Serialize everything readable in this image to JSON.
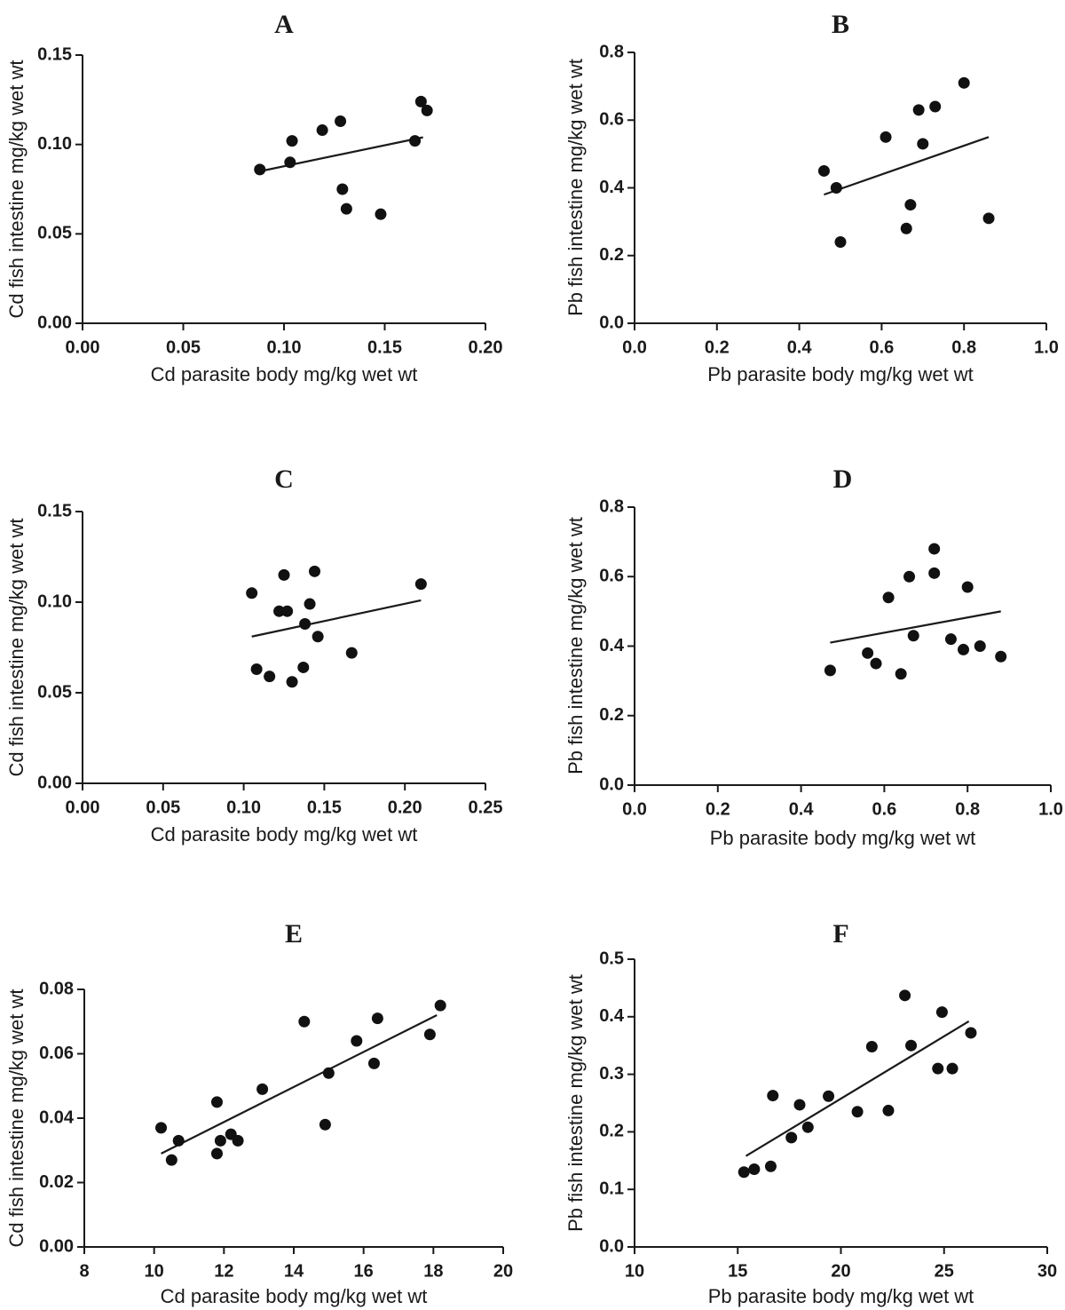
{
  "chart_data": [
    {
      "type": "scatter",
      "panel_label": "A",
      "xlabel": "Cd parasite body mg/kg wet wt",
      "ylabel": "Cd fish intestine mg/kg wet wt",
      "xlim": [
        0,
        0.2
      ],
      "ylim": [
        0,
        0.15
      ],
      "x_ticks": [
        0,
        0.05,
        0.1,
        0.15,
        0.2
      ],
      "x_tick_labels": [
        "0.00",
        "0.05",
        "0.10",
        "0.15",
        "0.20"
      ],
      "y_ticks": [
        0,
        0.05,
        0.1,
        0.15
      ],
      "y_tick_labels": [
        "0.00",
        "0.05",
        "0.10",
        "0.15"
      ],
      "points": [
        {
          "x": 0.088,
          "y": 0.086
        },
        {
          "x": 0.103,
          "y": 0.09
        },
        {
          "x": 0.104,
          "y": 0.102
        },
        {
          "x": 0.119,
          "y": 0.108
        },
        {
          "x": 0.128,
          "y": 0.113
        },
        {
          "x": 0.129,
          "y": 0.075
        },
        {
          "x": 0.131,
          "y": 0.064
        },
        {
          "x": 0.148,
          "y": 0.061
        },
        {
          "x": 0.165,
          "y": 0.102
        },
        {
          "x": 0.168,
          "y": 0.124
        },
        {
          "x": 0.171,
          "y": 0.119
        }
      ],
      "fit_line": {
        "x": [
          0.088,
          0.169
        ],
        "y": [
          0.085,
          0.104
        ]
      }
    },
    {
      "type": "scatter",
      "panel_label": "B",
      "xlabel": "Pb parasite body mg/kg wet wt",
      "ylabel": "Pb fish intestine mg/kg wet wt",
      "xlim": [
        0,
        1.0
      ],
      "ylim": [
        0,
        0.8
      ],
      "x_ticks": [
        0,
        0.2,
        0.4,
        0.6,
        0.8,
        1.0
      ],
      "x_tick_labels": [
        "0.0",
        "0.2",
        "0.4",
        "0.6",
        "0.8",
        "1.0"
      ],
      "y_ticks": [
        0,
        0.2,
        0.4,
        0.6,
        0.8
      ],
      "y_tick_labels": [
        "0.0",
        "0.2",
        "0.4",
        "0.6",
        "0.8"
      ],
      "points": [
        {
          "x": 0.46,
          "y": 0.45
        },
        {
          "x": 0.49,
          "y": 0.4
        },
        {
          "x": 0.5,
          "y": 0.24
        },
        {
          "x": 0.61,
          "y": 0.55
        },
        {
          "x": 0.66,
          "y": 0.28
        },
        {
          "x": 0.67,
          "y": 0.35
        },
        {
          "x": 0.69,
          "y": 0.63
        },
        {
          "x": 0.7,
          "y": 0.53
        },
        {
          "x": 0.73,
          "y": 0.64
        },
        {
          "x": 0.8,
          "y": 0.71
        },
        {
          "x": 0.86,
          "y": 0.31
        }
      ],
      "fit_line": {
        "x": [
          0.46,
          0.86
        ],
        "y": [
          0.38,
          0.55
        ]
      }
    },
    {
      "type": "scatter",
      "panel_label": "C",
      "xlabel": "Cd parasite body mg/kg wet wt",
      "ylabel": "Cd fish intestine mg/kg wet wt",
      "xlim": [
        0,
        0.25
      ],
      "ylim": [
        0,
        0.15
      ],
      "x_ticks": [
        0,
        0.05,
        0.1,
        0.15,
        0.2,
        0.25
      ],
      "x_tick_labels": [
        "0.00",
        "0.05",
        "0.10",
        "0.15",
        "0.20",
        "0.25"
      ],
      "y_ticks": [
        0,
        0.05,
        0.1,
        0.15
      ],
      "y_tick_labels": [
        "0.00",
        "0.05",
        "0.10",
        "0.15"
      ],
      "points": [
        {
          "x": 0.105,
          "y": 0.105
        },
        {
          "x": 0.108,
          "y": 0.063
        },
        {
          "x": 0.116,
          "y": 0.059
        },
        {
          "x": 0.122,
          "y": 0.095
        },
        {
          "x": 0.125,
          "y": 0.115
        },
        {
          "x": 0.127,
          "y": 0.095
        },
        {
          "x": 0.13,
          "y": 0.056
        },
        {
          "x": 0.137,
          "y": 0.064
        },
        {
          "x": 0.138,
          "y": 0.088
        },
        {
          "x": 0.141,
          "y": 0.099
        },
        {
          "x": 0.144,
          "y": 0.117
        },
        {
          "x": 0.146,
          "y": 0.081
        },
        {
          "x": 0.167,
          "y": 0.072
        },
        {
          "x": 0.21,
          "y": 0.11
        }
      ],
      "fit_line": {
        "x": [
          0.105,
          0.21
        ],
        "y": [
          0.081,
          0.101
        ]
      }
    },
    {
      "type": "scatter",
      "panel_label": "D",
      "xlabel": "Pb parasite body mg/kg wet wt",
      "ylabel": "Pb fish intestine mg/kg wet wt",
      "xlim": [
        0,
        1.0
      ],
      "ylim": [
        0,
        0.8
      ],
      "x_ticks": [
        0,
        0.2,
        0.4,
        0.6,
        0.8,
        1.0
      ],
      "x_tick_labels": [
        "0.0",
        "0.2",
        "0.4",
        "0.6",
        "0.8",
        "1.0"
      ],
      "y_ticks": [
        0,
        0.2,
        0.4,
        0.6,
        0.8
      ],
      "y_tick_labels": [
        "0.0",
        "0.2",
        "0.4",
        "0.6",
        "0.8"
      ],
      "points": [
        {
          "x": 0.47,
          "y": 0.33
        },
        {
          "x": 0.56,
          "y": 0.38
        },
        {
          "x": 0.58,
          "y": 0.35
        },
        {
          "x": 0.61,
          "y": 0.54
        },
        {
          "x": 0.64,
          "y": 0.32
        },
        {
          "x": 0.66,
          "y": 0.6
        },
        {
          "x": 0.67,
          "y": 0.43
        },
        {
          "x": 0.72,
          "y": 0.61
        },
        {
          "x": 0.72,
          "y": 0.68
        },
        {
          "x": 0.76,
          "y": 0.42
        },
        {
          "x": 0.79,
          "y": 0.39
        },
        {
          "x": 0.8,
          "y": 0.57
        },
        {
          "x": 0.83,
          "y": 0.4
        },
        {
          "x": 0.88,
          "y": 0.37
        }
      ],
      "fit_line": {
        "x": [
          0.47,
          0.88
        ],
        "y": [
          0.41,
          0.5
        ]
      }
    },
    {
      "type": "scatter",
      "panel_label": "E",
      "xlabel": "Cd parasite body mg/kg wet wt",
      "ylabel": "Cd fish intestine mg/kg wet wt",
      "xlim": [
        8,
        20
      ],
      "ylim": [
        0,
        0.08
      ],
      "x_ticks": [
        8,
        10,
        12,
        14,
        16,
        18,
        20
      ],
      "x_tick_labels": [
        "8",
        "10",
        "12",
        "14",
        "16",
        "18",
        "20"
      ],
      "y_ticks": [
        0,
        0.02,
        0.04,
        0.06,
        0.08
      ],
      "y_tick_labels": [
        "0.00",
        "0.02",
        "0.04",
        "0.06",
        "0.08"
      ],
      "points": [
        {
          "x": 10.2,
          "y": 0.037
        },
        {
          "x": 10.5,
          "y": 0.027
        },
        {
          "x": 10.7,
          "y": 0.033
        },
        {
          "x": 11.8,
          "y": 0.045
        },
        {
          "x": 11.8,
          "y": 0.029
        },
        {
          "x": 11.9,
          "y": 0.033
        },
        {
          "x": 12.2,
          "y": 0.035
        },
        {
          "x": 12.4,
          "y": 0.033
        },
        {
          "x": 13.1,
          "y": 0.049
        },
        {
          "x": 14.3,
          "y": 0.07
        },
        {
          "x": 14.9,
          "y": 0.038
        },
        {
          "x": 15.0,
          "y": 0.054
        },
        {
          "x": 15.8,
          "y": 0.064
        },
        {
          "x": 16.3,
          "y": 0.057
        },
        {
          "x": 16.4,
          "y": 0.071
        },
        {
          "x": 17.9,
          "y": 0.066
        },
        {
          "x": 18.2,
          "y": 0.075
        }
      ],
      "fit_line": {
        "x": [
          10.2,
          18.1
        ],
        "y": [
          0.029,
          0.072
        ]
      }
    },
    {
      "type": "scatter",
      "panel_label": "F",
      "xlabel": "Pb parasite body mg/kg wet wt",
      "ylabel": "Pb fish intestine mg/kg wet wt",
      "xlim": [
        10,
        30
      ],
      "ylim": [
        0,
        0.5
      ],
      "x_ticks": [
        10,
        15,
        20,
        25,
        30
      ],
      "x_tick_labels": [
        "10",
        "15",
        "20",
        "25",
        "30"
      ],
      "y_ticks": [
        0,
        0.1,
        0.2,
        0.3,
        0.4,
        0.5
      ],
      "y_tick_labels": [
        "0.0",
        "0.1",
        "0.2",
        "0.3",
        "0.4",
        "0.5"
      ],
      "points": [
        {
          "x": 15.3,
          "y": 0.13
        },
        {
          "x": 15.8,
          "y": 0.135
        },
        {
          "x": 16.6,
          "y": 0.14
        },
        {
          "x": 16.7,
          "y": 0.263
        },
        {
          "x": 17.6,
          "y": 0.19
        },
        {
          "x": 18.0,
          "y": 0.247
        },
        {
          "x": 18.4,
          "y": 0.208
        },
        {
          "x": 19.4,
          "y": 0.262
        },
        {
          "x": 20.8,
          "y": 0.235
        },
        {
          "x": 21.5,
          "y": 0.348
        },
        {
          "x": 22.3,
          "y": 0.237
        },
        {
          "x": 23.1,
          "y": 0.437
        },
        {
          "x": 23.4,
          "y": 0.35
        },
        {
          "x": 24.7,
          "y": 0.31
        },
        {
          "x": 24.9,
          "y": 0.408
        },
        {
          "x": 25.4,
          "y": 0.31
        },
        {
          "x": 26.3,
          "y": 0.372
        }
      ],
      "fit_line": {
        "x": [
          15.4,
          26.2
        ],
        "y": [
          0.158,
          0.392
        ]
      }
    }
  ]
}
